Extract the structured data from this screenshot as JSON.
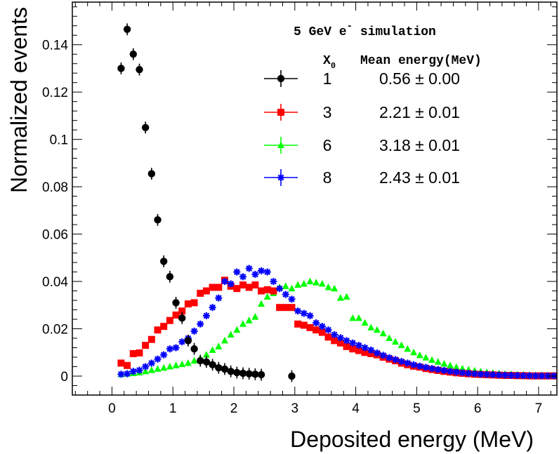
{
  "chart_data": {
    "type": "scatter",
    "title_html": "",
    "xlabel": "Deposited energy (MeV)",
    "ylabel": "Normalized events",
    "xlim": [
      -0.65,
      7.3
    ],
    "ylim": [
      -0.008,
      0.158
    ],
    "x_ticks": [
      0,
      1,
      2,
      3,
      4,
      5,
      6,
      7
    ],
    "y_ticks": [
      0,
      0.02,
      0.04,
      0.06,
      0.08,
      0.1,
      0.12,
      0.14
    ],
    "y_tick_labels": [
      "0",
      "0.02",
      "0.04",
      "0.06",
      "0.08",
      "0.1",
      "0.12",
      "0.14"
    ],
    "legend": {
      "header_pre": "5 GeV e",
      "header_sup": "-",
      "header_post": " simulation",
      "col1_head": "X",
      "col1_sub": "0",
      "col2_head": "Mean energy(MeV)",
      "placement": "top-right"
    },
    "series": [
      {
        "name": "1",
        "mean": "0.56 ± 0.00",
        "color": "#000000",
        "marker": "circle",
        "err": 0.0025,
        "points": [
          [
            0.15,
            0.13
          ],
          [
            0.25,
            0.1465
          ],
          [
            0.35,
            0.136
          ],
          [
            0.45,
            0.1295
          ],
          [
            0.55,
            0.105
          ],
          [
            0.65,
            0.0855
          ],
          [
            0.75,
            0.066
          ],
          [
            0.85,
            0.0485
          ],
          [
            0.95,
            0.042
          ],
          [
            1.05,
            0.031
          ],
          [
            1.15,
            0.0245
          ],
          [
            1.25,
            0.015
          ],
          [
            1.35,
            0.0115
          ],
          [
            1.45,
            0.0065
          ],
          [
            1.55,
            0.006
          ],
          [
            1.65,
            0.0048
          ],
          [
            1.75,
            0.0035
          ],
          [
            1.85,
            0.003
          ],
          [
            1.95,
            0.002
          ],
          [
            2.05,
            0.0015
          ],
          [
            2.15,
            0.0012
          ],
          [
            2.25,
            0.001
          ],
          [
            2.35,
            0.0008
          ],
          [
            2.45,
            0.0006
          ],
          [
            2.95,
            0.0
          ]
        ]
      },
      {
        "name": "3",
        "mean": "2.21 ± 0.01",
        "color": "#ff0000",
        "marker": "square",
        "err": 0.0,
        "points": [
          [
            0.15,
            0.0055
          ],
          [
            0.25,
            0.0045
          ],
          [
            0.35,
            0.0095
          ],
          [
            0.45,
            0.0098
          ],
          [
            0.55,
            0.013
          ],
          [
            0.65,
            0.0155
          ],
          [
            0.75,
            0.0195
          ],
          [
            0.85,
            0.021
          ],
          [
            0.95,
            0.0235
          ],
          [
            1.05,
            0.0258
          ],
          [
            1.15,
            0.0275
          ],
          [
            1.25,
            0.0305
          ],
          [
            1.35,
            0.031
          ],
          [
            1.45,
            0.035
          ],
          [
            1.55,
            0.036
          ],
          [
            1.65,
            0.0375
          ],
          [
            1.75,
            0.0375
          ],
          [
            1.85,
            0.0405
          ],
          [
            1.95,
            0.038
          ],
          [
            2.05,
            0.037
          ],
          [
            2.15,
            0.0385
          ],
          [
            2.25,
            0.0375
          ],
          [
            2.35,
            0.0385
          ],
          [
            2.45,
            0.036
          ],
          [
            2.55,
            0.0365
          ],
          [
            2.65,
            0.036
          ],
          [
            2.75,
            0.029
          ],
          [
            2.85,
            0.029
          ],
          [
            2.95,
            0.029
          ],
          [
            3.05,
            0.022
          ],
          [
            3.15,
            0.0215
          ],
          [
            3.25,
            0.0205
          ],
          [
            3.35,
            0.0195
          ],
          [
            3.45,
            0.0185
          ],
          [
            3.55,
            0.0165
          ],
          [
            3.65,
            0.015
          ],
          [
            3.75,
            0.014
          ],
          [
            3.85,
            0.0125
          ],
          [
            3.95,
            0.0115
          ],
          [
            4.05,
            0.0108
          ],
          [
            4.15,
            0.01
          ],
          [
            4.25,
            0.0095
          ],
          [
            4.35,
            0.009
          ],
          [
            4.45,
            0.008
          ],
          [
            4.55,
            0.0072
          ],
          [
            4.65,
            0.0065
          ],
          [
            4.75,
            0.0055
          ],
          [
            4.85,
            0.0048
          ],
          [
            4.95,
            0.0042
          ],
          [
            5.05,
            0.0038
          ],
          [
            5.15,
            0.0032
          ],
          [
            5.25,
            0.0028
          ],
          [
            5.35,
            0.0024
          ],
          [
            5.45,
            0.002
          ],
          [
            5.55,
            0.0017
          ],
          [
            5.65,
            0.0014
          ],
          [
            5.75,
            0.0012
          ],
          [
            5.85,
            0.001
          ],
          [
            5.95,
            0.0008
          ],
          [
            6.05,
            0.0007
          ],
          [
            6.15,
            0.0006
          ],
          [
            6.25,
            0.0005
          ],
          [
            6.35,
            0.0004
          ],
          [
            6.45,
            0.0003
          ],
          [
            6.55,
            0.0003
          ],
          [
            6.65,
            0.0002
          ],
          [
            6.75,
            0.0002
          ],
          [
            6.85,
            0.0001
          ],
          [
            6.95,
            0.0001
          ],
          [
            7.05,
            0.0001
          ],
          [
            7.15,
            0.0001
          ],
          [
            7.25,
            0.0001
          ]
        ]
      },
      {
        "name": "6",
        "mean": "3.18 ± 0.01",
        "color": "#00ff00",
        "marker": "triangle",
        "err": 0.0,
        "points": [
          [
            0.15,
            0.0008
          ],
          [
            0.25,
            0.001
          ],
          [
            0.35,
            0.0012
          ],
          [
            0.45,
            0.0015
          ],
          [
            0.55,
            0.002
          ],
          [
            0.65,
            0.0025
          ],
          [
            0.75,
            0.003
          ],
          [
            0.85,
            0.0035
          ],
          [
            0.95,
            0.004
          ],
          [
            1.05,
            0.0045
          ],
          [
            1.15,
            0.005
          ],
          [
            1.25,
            0.0055
          ],
          [
            1.35,
            0.0065
          ],
          [
            1.45,
            0.0075
          ],
          [
            1.55,
            0.009
          ],
          [
            1.65,
            0.011
          ],
          [
            1.75,
            0.0125
          ],
          [
            1.85,
            0.015
          ],
          [
            1.95,
            0.0175
          ],
          [
            2.05,
            0.0195
          ],
          [
            2.15,
            0.022
          ],
          [
            2.25,
            0.0235
          ],
          [
            2.35,
            0.025
          ],
          [
            2.45,
            0.0305
          ],
          [
            2.55,
            0.0335
          ],
          [
            2.65,
            0.035
          ],
          [
            2.75,
            0.0375
          ],
          [
            2.85,
            0.038
          ],
          [
            2.95,
            0.037
          ],
          [
            3.05,
            0.0385
          ],
          [
            3.15,
            0.039
          ],
          [
            3.25,
            0.04
          ],
          [
            3.35,
            0.0395
          ],
          [
            3.45,
            0.039
          ],
          [
            3.55,
            0.0375
          ],
          [
            3.65,
            0.037
          ],
          [
            3.75,
            0.033
          ],
          [
            3.85,
            0.0335
          ],
          [
            3.95,
            0.0245
          ],
          [
            4.05,
            0.0245
          ],
          [
            4.15,
            0.0225
          ],
          [
            4.25,
            0.0205
          ],
          [
            4.35,
            0.0195
          ],
          [
            4.45,
            0.018
          ],
          [
            4.55,
            0.016
          ],
          [
            4.65,
            0.0145
          ],
          [
            4.75,
            0.013
          ],
          [
            4.85,
            0.0115
          ],
          [
            4.95,
            0.01
          ],
          [
            5.05,
            0.0088
          ],
          [
            5.15,
            0.0078
          ],
          [
            5.25,
            0.0068
          ],
          [
            5.35,
            0.006
          ],
          [
            5.45,
            0.0052
          ],
          [
            5.55,
            0.0045
          ],
          [
            5.65,
            0.0038
          ],
          [
            5.75,
            0.0032
          ],
          [
            5.85,
            0.0027
          ],
          [
            5.95,
            0.0023
          ],
          [
            6.05,
            0.0019
          ],
          [
            6.15,
            0.0016
          ],
          [
            6.25,
            0.0013
          ],
          [
            6.35,
            0.0011
          ],
          [
            6.45,
            0.0009
          ],
          [
            6.55,
            0.0008
          ],
          [
            6.65,
            0.0006
          ],
          [
            6.75,
            0.0005
          ],
          [
            6.85,
            0.0004
          ],
          [
            6.95,
            0.0003
          ],
          [
            7.05,
            0.0003
          ],
          [
            7.15,
            0.0002
          ],
          [
            7.25,
            0.0002
          ]
        ]
      },
      {
        "name": "8",
        "mean": "2.43 ± 0.01",
        "color": "#0000ff",
        "marker": "star",
        "err": 0.0,
        "points": [
          [
            0.15,
            0.0008
          ],
          [
            0.25,
            0.001
          ],
          [
            0.35,
            0.002
          ],
          [
            0.45,
            0.0025
          ],
          [
            0.55,
            0.004
          ],
          [
            0.65,
            0.0055
          ],
          [
            0.75,
            0.0072
          ],
          [
            0.85,
            0.009
          ],
          [
            0.95,
            0.0115
          ],
          [
            1.05,
            0.012
          ],
          [
            1.15,
            0.0145
          ],
          [
            1.25,
            0.016
          ],
          [
            1.35,
            0.019
          ],
          [
            1.45,
            0.022
          ],
          [
            1.55,
            0.0255
          ],
          [
            1.65,
            0.029
          ],
          [
            1.75,
            0.033
          ],
          [
            1.85,
            0.04
          ],
          [
            1.95,
            0.039
          ],
          [
            2.05,
            0.044
          ],
          [
            2.15,
            0.042
          ],
          [
            2.25,
            0.0455
          ],
          [
            2.35,
            0.043
          ],
          [
            2.45,
            0.0445
          ],
          [
            2.55,
            0.044
          ],
          [
            2.65,
            0.04
          ],
          [
            2.75,
            0.037
          ],
          [
            2.85,
            0.0345
          ],
          [
            2.95,
            0.0325
          ],
          [
            3.05,
            0.0275
          ],
          [
            3.15,
            0.0265
          ],
          [
            3.25,
            0.0255
          ],
          [
            3.35,
            0.0225
          ],
          [
            3.45,
            0.021
          ],
          [
            3.55,
            0.0195
          ],
          [
            3.65,
            0.0175
          ],
          [
            3.75,
            0.0162
          ],
          [
            3.85,
            0.015
          ],
          [
            3.95,
            0.014
          ],
          [
            4.05,
            0.013
          ],
          [
            4.15,
            0.012
          ],
          [
            4.25,
            0.011
          ],
          [
            4.35,
            0.0098
          ],
          [
            4.45,
            0.0088
          ],
          [
            4.55,
            0.0078
          ],
          [
            4.65,
            0.007
          ],
          [
            4.75,
            0.0062
          ],
          [
            4.85,
            0.0055
          ],
          [
            4.95,
            0.0048
          ],
          [
            5.05,
            0.0042
          ],
          [
            5.15,
            0.0037
          ],
          [
            5.25,
            0.0032
          ],
          [
            5.35,
            0.0028
          ],
          [
            5.45,
            0.0024
          ],
          [
            5.55,
            0.002
          ],
          [
            5.65,
            0.0017
          ],
          [
            5.75,
            0.0014
          ],
          [
            5.85,
            0.0012
          ],
          [
            5.95,
            0.001
          ],
          [
            6.05,
            0.0008
          ],
          [
            6.15,
            0.0007
          ],
          [
            6.25,
            0.0006
          ],
          [
            6.35,
            0.0005
          ],
          [
            6.45,
            0.0004
          ],
          [
            6.55,
            0.0003
          ],
          [
            6.65,
            0.0003
          ],
          [
            6.75,
            0.0002
          ],
          [
            6.85,
            0.0002
          ],
          [
            6.95,
            0.0001
          ],
          [
            7.05,
            0.0001
          ],
          [
            7.15,
            0.0001
          ],
          [
            7.25,
            0.0001
          ]
        ]
      }
    ]
  }
}
